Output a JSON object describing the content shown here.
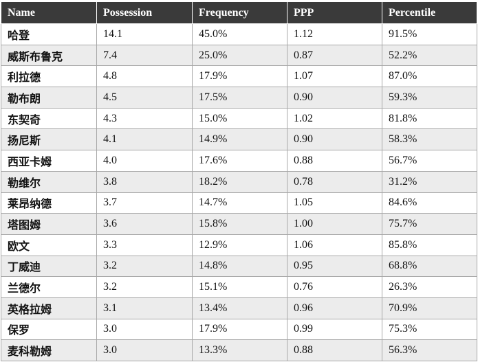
{
  "table": {
    "headers": [
      "Name",
      "Possession",
      "Frequency",
      "PPP",
      "Percentile"
    ],
    "rows": [
      [
        "哈登",
        "14.1",
        "45.0%",
        "1.12",
        "91.5%"
      ],
      [
        "威斯布鲁克",
        "7.4",
        "25.0%",
        "0.87",
        "52.2%"
      ],
      [
        "利拉德",
        "4.8",
        "17.9%",
        "1.07",
        "87.0%"
      ],
      [
        "勒布朗",
        "4.5",
        "17.5%",
        "0.90",
        "59.3%"
      ],
      [
        "东契奇",
        "4.3",
        "15.0%",
        "1.02",
        "81.8%"
      ],
      [
        "扬尼斯",
        "4.1",
        "14.9%",
        "0.90",
        "58.3%"
      ],
      [
        "西亚卡姆",
        "4.0",
        "17.6%",
        "0.88",
        "56.7%"
      ],
      [
        "勒维尔",
        "3.8",
        "18.2%",
        "0.78",
        "31.2%"
      ],
      [
        "莱昂纳德",
        "3.7",
        "14.7%",
        "1.05",
        "84.6%"
      ],
      [
        "塔图姆",
        "3.6",
        "15.8%",
        "1.00",
        "75.7%"
      ],
      [
        "欧文",
        "3.3",
        "12.9%",
        "1.06",
        "85.8%"
      ],
      [
        "丁威迪",
        "3.2",
        "14.8%",
        "0.95",
        "68.8%"
      ],
      [
        "兰德尔",
        "3.2",
        "15.1%",
        "0.76",
        "26.3%"
      ],
      [
        "英格拉姆",
        "3.1",
        "13.4%",
        "0.96",
        "70.9%"
      ],
      [
        "保罗",
        "3.0",
        "17.9%",
        "0.99",
        "75.3%"
      ],
      [
        "麦科勒姆",
        "3.0",
        "13.3%",
        "0.88",
        "56.3%"
      ]
    ]
  }
}
